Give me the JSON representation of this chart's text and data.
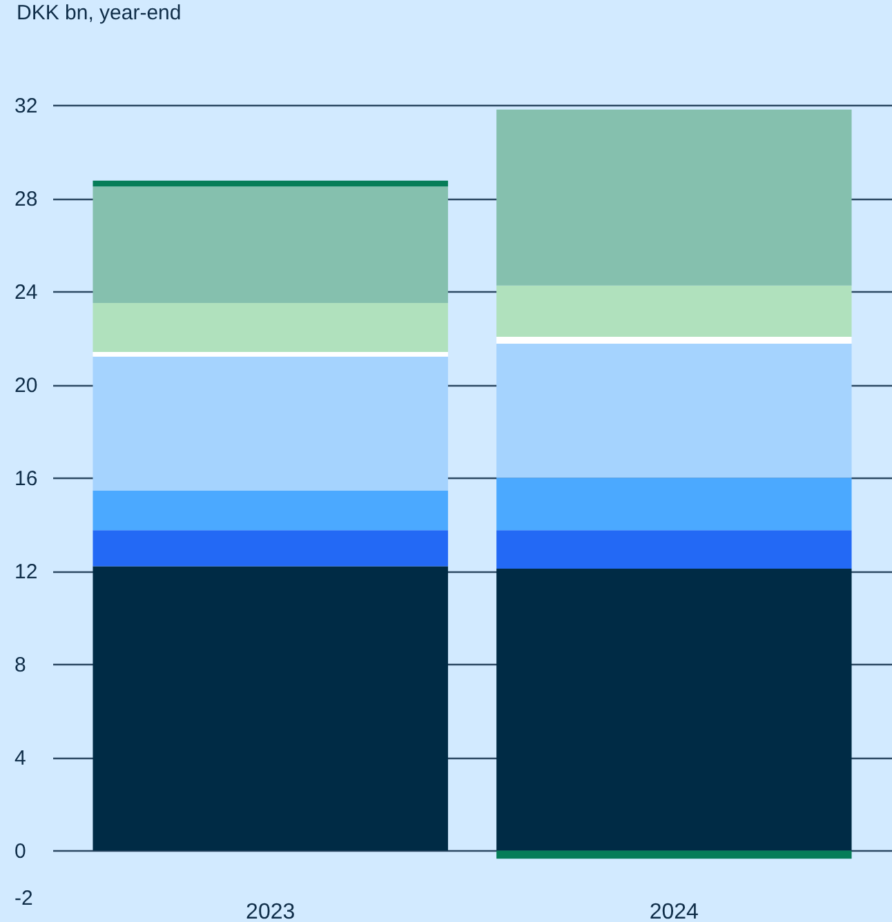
{
  "chart_data": {
    "type": "bar",
    "stacked": true,
    "ylabel": "DKK bn, year-end",
    "categories": [
      "2023",
      "2024"
    ],
    "ylim": [
      -2,
      32
    ],
    "yticks": [
      -2,
      0,
      4,
      8,
      12,
      16,
      20,
      24,
      28,
      32
    ],
    "grid": "y",
    "series": [
      {
        "color": "#002b45",
        "values": [
          12.2,
          12.1
        ]
      },
      {
        "color": "#2369f5",
        "values": [
          1.55,
          1.65
        ]
      },
      {
        "color": "#4ba9ff",
        "values": [
          1.7,
          2.25
        ]
      },
      {
        "color": "#a5d3fe",
        "values": [
          5.75,
          5.75
        ]
      },
      {
        "color": "#ffffff",
        "values": [
          0.2,
          0.3
        ]
      },
      {
        "color": "#b0e1bd",
        "values": [
          2.1,
          2.2
        ]
      },
      {
        "color": "#85c0ae",
        "values": [
          5.0,
          7.55
        ]
      },
      {
        "color": "#067d58",
        "values": [
          0.25,
          -0.35
        ]
      }
    ]
  }
}
